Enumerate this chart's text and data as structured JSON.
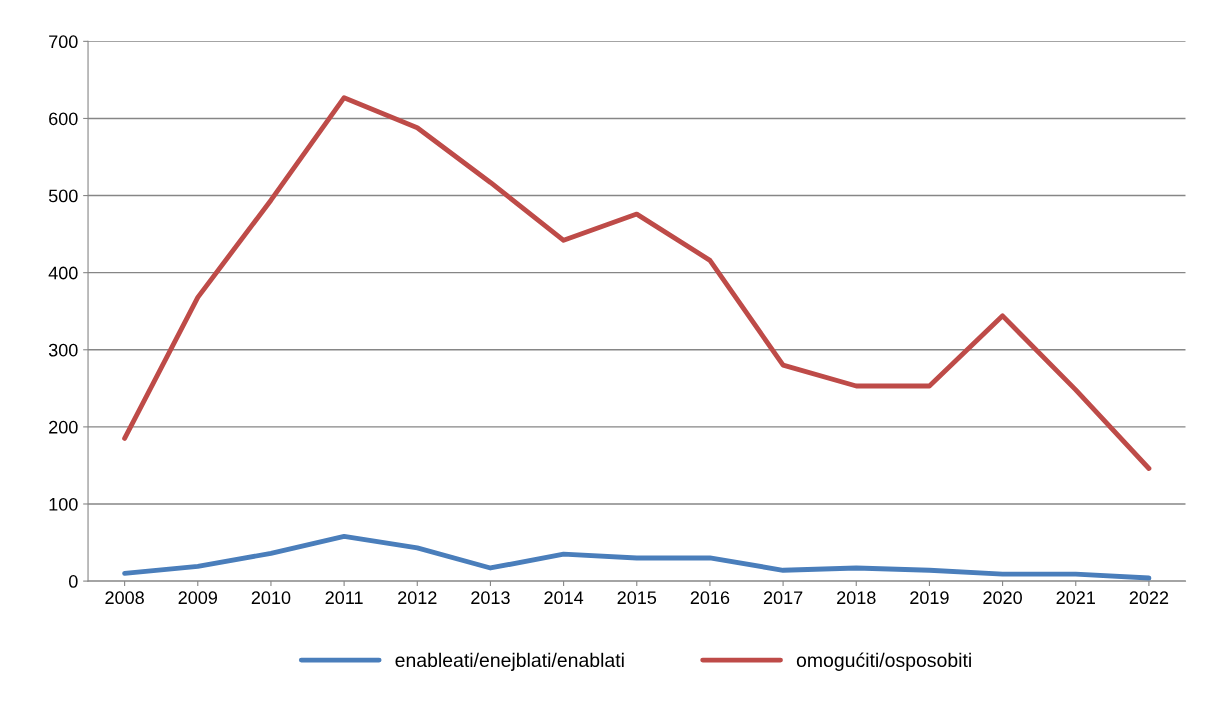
{
  "chart_data": {
    "type": "line",
    "categories": [
      "2008",
      "2009",
      "2010",
      "2011",
      "2012",
      "2013",
      "2014",
      "2015",
      "2016",
      "2017",
      "2018",
      "2019",
      "2020",
      "2021",
      "2022"
    ],
    "series": [
      {
        "name": "enableati/enejblati/enablati",
        "color": "#4a7ebb",
        "values": [
          10,
          19,
          36,
          58,
          43,
          17,
          35,
          30,
          30,
          14,
          17,
          14,
          9,
          9,
          4
        ]
      },
      {
        "name": "omogućiti/osposobiti",
        "color": "#be4b48",
        "values": [
          185,
          368,
          494,
          627,
          588,
          517,
          442,
          476,
          416,
          280,
          253,
          253,
          344,
          248,
          146
        ]
      }
    ],
    "ylim": [
      0,
      700
    ],
    "yticks": [
      0,
      100,
      200,
      300,
      400,
      500,
      600,
      700
    ],
    "grid": "y",
    "legend": "bottom",
    "marker": "none",
    "line_style": "solid"
  }
}
